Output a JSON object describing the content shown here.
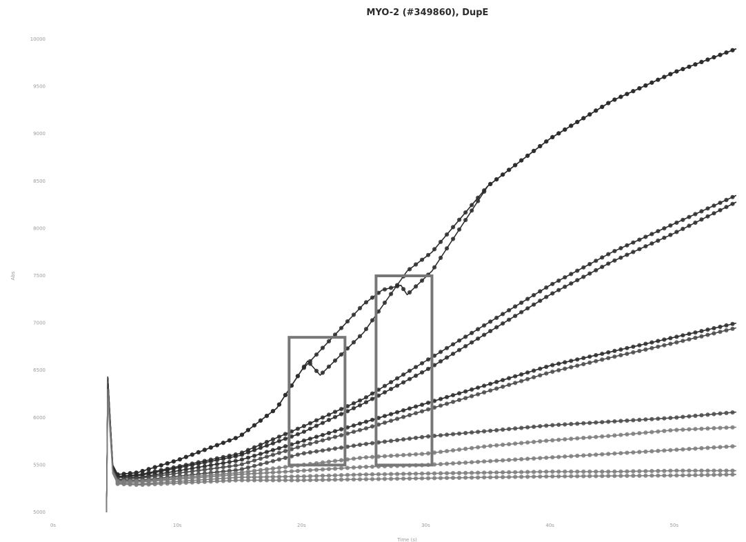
{
  "chart_data": {
    "type": "line",
    "title": "MYO-2 (#349860), DupE",
    "xlabel": "Time (s)",
    "ylabel": "Abs",
    "xlim": [
      0,
      60
    ],
    "ylim": [
      5000,
      10000
    ],
    "x_ticks": [
      0,
      10,
      20,
      30,
      40,
      50
    ],
    "x_tick_labels": [
      "0s",
      "10s",
      "20s",
      "30s",
      "40s",
      "50s"
    ],
    "y_ticks": [
      5000,
      5500,
      6000,
      6500,
      7000,
      7500,
      8000,
      8500,
      9000,
      9500,
      10000
    ],
    "y_tick_labels": [
      "5000",
      "5500",
      "6000",
      "6500",
      "7000",
      "7500",
      "8000",
      "8500",
      "9000",
      "9500",
      "10000"
    ],
    "grid": false,
    "legend": "none",
    "marker_interval_s": 0.5,
    "colors": {
      "dark": "#2c2c2c",
      "mid": "#4a4a4a",
      "light": "#7d7d7d",
      "box": "#777777"
    },
    "series": [
      {
        "color_key": "dark",
        "points": [
          [
            4.3,
            5000
          ],
          [
            4.4,
            6430
          ],
          [
            4.8,
            5500
          ],
          [
            5.2,
            5400
          ],
          [
            6.8,
            5420
          ],
          [
            10,
            5550
          ],
          [
            15,
            5800
          ],
          [
            18,
            6100
          ],
          [
            20,
            6500
          ],
          [
            20.5,
            6600
          ],
          [
            21.5,
            6450
          ],
          [
            25,
            6900
          ],
          [
            28.5,
            7550
          ],
          [
            30.5,
            7750
          ],
          [
            35,
            8450
          ],
          [
            40,
            8950
          ],
          [
            45,
            9350
          ],
          [
            50,
            9650
          ],
          [
            55,
            9900
          ]
        ]
      },
      {
        "color_key": "dark",
        "points": [
          [
            4.3,
            5000
          ],
          [
            4.4,
            6430
          ],
          [
            4.8,
            5500
          ],
          [
            5.2,
            5400
          ],
          [
            6.8,
            5420
          ],
          [
            10,
            5550
          ],
          [
            15,
            5800
          ],
          [
            18,
            6100
          ],
          [
            20,
            6500
          ],
          [
            25,
            7200
          ],
          [
            26.5,
            7350
          ],
          [
            28,
            7400
          ],
          [
            28.5,
            7300
          ],
          [
            30.5,
            7550
          ],
          [
            35,
            8450
          ],
          [
            40,
            8950
          ],
          [
            45,
            9350
          ],
          [
            50,
            9650
          ],
          [
            55,
            9900
          ]
        ]
      },
      {
        "color_key": "dark",
        "points": [
          [
            4.3,
            5000
          ],
          [
            4.4,
            6420
          ],
          [
            4.8,
            5480
          ],
          [
            5.2,
            5380
          ],
          [
            7,
            5400
          ],
          [
            15,
            5620
          ],
          [
            20,
            5900
          ],
          [
            25,
            6200
          ],
          [
            30,
            6600
          ],
          [
            35,
            7000
          ],
          [
            40,
            7400
          ],
          [
            45,
            7750
          ],
          [
            50,
            8050
          ],
          [
            55,
            8350
          ]
        ]
      },
      {
        "color_key": "dark",
        "points": [
          [
            4.3,
            5000
          ],
          [
            4.4,
            6420
          ],
          [
            4.8,
            5480
          ],
          [
            5.2,
            5380
          ],
          [
            7,
            5390
          ],
          [
            15,
            5600
          ],
          [
            20,
            5840
          ],
          [
            25,
            6150
          ],
          [
            30,
            6500
          ],
          [
            35,
            6900
          ],
          [
            40,
            7300
          ],
          [
            45,
            7650
          ],
          [
            50,
            7950
          ],
          [
            55,
            8280
          ]
        ]
      },
      {
        "color_key": "dark",
        "points": [
          [
            4.3,
            5000
          ],
          [
            4.4,
            6420
          ],
          [
            4.8,
            5480
          ],
          [
            5.2,
            5370
          ],
          [
            7,
            5370
          ],
          [
            15,
            5550
          ],
          [
            20,
            5750
          ],
          [
            25,
            5950
          ],
          [
            30,
            6150
          ],
          [
            35,
            6350
          ],
          [
            40,
            6550
          ],
          [
            45,
            6700
          ],
          [
            50,
            6850
          ],
          [
            55,
            7000
          ]
        ]
      },
      {
        "color_key": "mid",
        "points": [
          [
            4.3,
            5000
          ],
          [
            4.4,
            6380
          ],
          [
            4.8,
            5460
          ],
          [
            5.2,
            5350
          ],
          [
            7,
            5360
          ],
          [
            15,
            5500
          ],
          [
            20,
            5700
          ],
          [
            25,
            5880
          ],
          [
            30,
            6080
          ],
          [
            35,
            6280
          ],
          [
            40,
            6480
          ],
          [
            45,
            6640
          ],
          [
            50,
            6790
          ],
          [
            55,
            6950
          ]
        ]
      },
      {
        "color_key": "mid",
        "points": [
          [
            4.3,
            5000
          ],
          [
            4.4,
            6350
          ],
          [
            4.8,
            5450
          ],
          [
            5.2,
            5340
          ],
          [
            7,
            5340
          ],
          [
            15,
            5450
          ],
          [
            20,
            5620
          ],
          [
            25,
            5720
          ],
          [
            30,
            5800
          ],
          [
            35,
            5860
          ],
          [
            40,
            5920
          ],
          [
            45,
            5960
          ],
          [
            50,
            6000
          ],
          [
            55,
            6060
          ]
        ]
      },
      {
        "color_key": "light",
        "points": [
          [
            4.3,
            5000
          ],
          [
            4.4,
            6300
          ],
          [
            4.8,
            5440
          ],
          [
            5.2,
            5330
          ],
          [
            7,
            5330
          ],
          [
            15,
            5420
          ],
          [
            20,
            5500
          ],
          [
            25,
            5580
          ],
          [
            30,
            5620
          ],
          [
            35,
            5700
          ],
          [
            40,
            5760
          ],
          [
            45,
            5810
          ],
          [
            50,
            5870
          ],
          [
            55,
            5900
          ]
        ]
      },
      {
        "color_key": "light",
        "points": [
          [
            4.3,
            5000
          ],
          [
            4.4,
            6280
          ],
          [
            4.8,
            5430
          ],
          [
            5.2,
            5320
          ],
          [
            7,
            5320
          ],
          [
            15,
            5400
          ],
          [
            20,
            5440
          ],
          [
            25,
            5480
          ],
          [
            30,
            5500
          ],
          [
            35,
            5540
          ],
          [
            40,
            5580
          ],
          [
            45,
            5620
          ],
          [
            50,
            5660
          ],
          [
            55,
            5700
          ]
        ]
      },
      {
        "color_key": "light",
        "points": [
          [
            4.3,
            5000
          ],
          [
            4.4,
            6250
          ],
          [
            4.8,
            5420
          ],
          [
            5.2,
            5310
          ],
          [
            7,
            5300
          ],
          [
            15,
            5370
          ],
          [
            20,
            5380
          ],
          [
            25,
            5400
          ],
          [
            30,
            5410
          ],
          [
            35,
            5420
          ],
          [
            40,
            5430
          ],
          [
            45,
            5430
          ],
          [
            50,
            5440
          ],
          [
            55,
            5440
          ]
        ]
      },
      {
        "color_key": "light",
        "points": [
          [
            4.3,
            5000
          ],
          [
            4.4,
            6220
          ],
          [
            4.8,
            5410
          ],
          [
            5.2,
            5300
          ],
          [
            7,
            5290
          ],
          [
            15,
            5340
          ],
          [
            20,
            5340
          ],
          [
            25,
            5350
          ],
          [
            30,
            5360
          ],
          [
            35,
            5370
          ],
          [
            40,
            5380
          ],
          [
            45,
            5385
          ],
          [
            50,
            5390
          ],
          [
            55,
            5400
          ]
        ]
      }
    ],
    "annotations": [
      {
        "type": "rect",
        "x0": 19,
        "x1": 23.5,
        "y0": 5500,
        "y1": 6850
      },
      {
        "type": "rect",
        "x0": 26,
        "x1": 30.5,
        "y0": 5500,
        "y1": 7500
      }
    ]
  }
}
